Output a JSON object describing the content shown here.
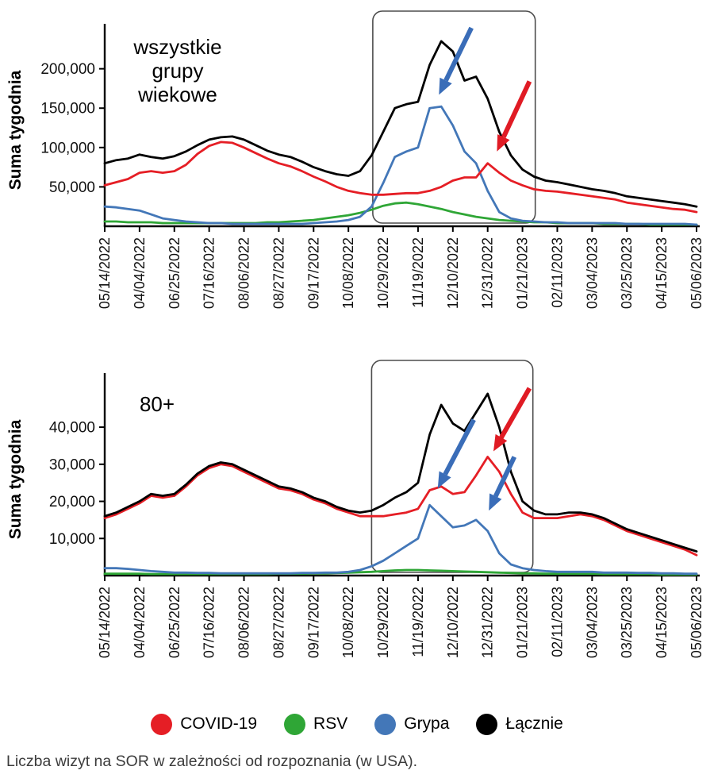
{
  "caption": "Liczba wizyt na SOR w zależności od rozpoznania (w USA).",
  "legend": {
    "items": [
      {
        "name": "covid-19",
        "label": "COVID-19",
        "color": "#e51e25"
      },
      {
        "name": "rsv",
        "label": "RSV",
        "color": "#2fa636"
      },
      {
        "name": "grypa",
        "label": "Grypa",
        "color": "#4377b8"
      },
      {
        "name": "lacznie",
        "label": "Łącznie",
        "color": "#000000"
      }
    ]
  },
  "chart_data": [
    {
      "type": "line",
      "title": "wszystkie grupy wiekowe",
      "title_lines": [
        "wszystkie",
        "grupy",
        "wiekowe"
      ],
      "ylabel": "Suma tygodnia",
      "ylim": [
        0,
        245000
      ],
      "yticks": [
        {
          "value": 50000,
          "label": "50,000"
        },
        {
          "value": 100000,
          "label": "100,000"
        },
        {
          "value": 150000,
          "label": "150,000"
        },
        {
          "value": 200000,
          "label": "200,000"
        }
      ],
      "x_tick_labels": [
        "05/14/2022",
        "04/04/2022",
        "06/25/2022",
        "07/16/2022",
        "08/06/2022",
        "08/27/2022",
        "09/17/2022",
        "10/08/2022",
        "10/29/2022",
        "11/19/2022",
        "12/10/2022",
        "12/31/2022",
        "01/21/2023",
        "02/11/2023",
        "03/04/2023",
        "03/25/2023",
        "04/15/2023",
        "05/06/2023"
      ],
      "x_tick_indices": [
        0,
        3,
        6,
        9,
        12,
        15,
        18,
        21,
        24,
        27,
        30,
        33,
        36,
        39,
        42,
        45,
        48,
        51
      ],
      "series": [
        {
          "id": "rsv",
          "name": "RSV",
          "color": "#2fa636",
          "values": [
            6000,
            6000,
            5000,
            5000,
            5000,
            4000,
            4000,
            4000,
            4000,
            4000,
            4000,
            4000,
            4000,
            4000,
            5000,
            5000,
            6000,
            7000,
            8000,
            10000,
            12000,
            14000,
            17000,
            21000,
            26000,
            29000,
            30000,
            28000,
            25000,
            22000,
            18000,
            15000,
            12000,
            10000,
            8000,
            7000,
            6000,
            5000,
            5000,
            4000,
            4000,
            4000,
            4000,
            3000,
            3000,
            3000,
            3000,
            2000,
            2000,
            2000,
            2000,
            2000
          ]
        },
        {
          "id": "grypa",
          "name": "Grypa",
          "color": "#4377b8",
          "values": [
            25000,
            24000,
            22000,
            20000,
            15000,
            10000,
            8000,
            6000,
            5000,
            4000,
            4000,
            3000,
            3000,
            3000,
            3000,
            3000,
            3000,
            3000,
            4000,
            5000,
            6000,
            8000,
            12000,
            25000,
            55000,
            88000,
            95000,
            100000,
            150000,
            152000,
            128000,
            95000,
            80000,
            45000,
            18000,
            10000,
            7000,
            6000,
            5000,
            5000,
            4000,
            4000,
            4000,
            4000,
            4000,
            3000,
            3000,
            3000,
            3000,
            3000,
            3000,
            2000
          ]
        },
        {
          "id": "covid-19",
          "name": "COVID-19",
          "color": "#e51e25",
          "values": [
            52000,
            56000,
            60000,
            68000,
            70000,
            68000,
            70000,
            78000,
            92000,
            102000,
            107000,
            106000,
            100000,
            93000,
            86000,
            80000,
            76000,
            70000,
            63000,
            57000,
            50000,
            45000,
            42000,
            40000,
            40000,
            41000,
            42000,
            42000,
            45000,
            50000,
            58000,
            62000,
            62000,
            80000,
            68000,
            58000,
            52000,
            47000,
            45000,
            44000,
            42000,
            40000,
            38000,
            36000,
            34000,
            30000,
            28000,
            26000,
            24000,
            22000,
            21000,
            18000
          ]
        },
        {
          "id": "lacznie",
          "name": "Łącznie",
          "color": "#000000",
          "values": [
            80000,
            84000,
            86000,
            91000,
            88000,
            86000,
            89000,
            95000,
            103000,
            110000,
            113000,
            114000,
            110000,
            103000,
            96000,
            91000,
            88000,
            82000,
            75000,
            70000,
            66000,
            64000,
            70000,
            90000,
            120000,
            150000,
            155000,
            158000,
            205000,
            235000,
            222000,
            185000,
            190000,
            162000,
            120000,
            90000,
            72000,
            63000,
            58000,
            56000,
            53000,
            50000,
            47000,
            45000,
            42000,
            38000,
            36000,
            34000,
            32000,
            30000,
            28000,
            25000
          ]
        }
      ],
      "highlight_box": {
        "from_index": 23.1,
        "to_index": 37.1
      },
      "arrows": [
        {
          "color": "#3a6db8",
          "tail": {
            "index": 31.6,
            "value": 252000
          },
          "tip": {
            "index": 28.8,
            "value": 167000
          }
        },
        {
          "color": "#e01b24",
          "tail": {
            "index": 36.6,
            "value": 184000
          },
          "tip": {
            "index": 33.8,
            "value": 95000
          }
        }
      ]
    },
    {
      "type": "line",
      "title": "80+",
      "title_lines": [
        "80+"
      ],
      "ylabel": "Suma tygodnia",
      "ylim": [
        0,
        52000
      ],
      "yticks": [
        {
          "value": 10000,
          "label": "10,000"
        },
        {
          "value": 20000,
          "label": "20,000"
        },
        {
          "value": 30000,
          "label": "30,000"
        },
        {
          "value": 40000,
          "label": "40,000"
        }
      ],
      "x_tick_labels": [
        "05/14/2022",
        "04/04/2022",
        "06/25/2022",
        "07/16/2022",
        "08/06/2022",
        "08/27/2022",
        "09/17/2022",
        "10/08/2022",
        "10/29/2022",
        "11/19/2022",
        "12/10/2022",
        "12/31/2022",
        "01/21/2023",
        "02/11/2023",
        "03/04/2023",
        "03/25/2023",
        "04/15/2023",
        "05/06/2023"
      ],
      "x_tick_indices": [
        0,
        3,
        6,
        9,
        12,
        15,
        18,
        21,
        24,
        27,
        30,
        33,
        36,
        39,
        42,
        45,
        48,
        51
      ],
      "series": [
        {
          "id": "rsv",
          "name": "RSV",
          "color": "#2fa636",
          "values": [
            500,
            500,
            500,
            500,
            400,
            400,
            400,
            400,
            400,
            400,
            400,
            400,
            400,
            400,
            400,
            500,
            500,
            500,
            600,
            600,
            700,
            800,
            900,
            1000,
            1200,
            1400,
            1500,
            1500,
            1400,
            1300,
            1200,
            1100,
            1000,
            900,
            800,
            700,
            600,
            600,
            500,
            500,
            500,
            500,
            500,
            400,
            400,
            400,
            400,
            400,
            300,
            300,
            300,
            300
          ]
        },
        {
          "id": "grypa",
          "name": "Grypa",
          "color": "#4377b8",
          "values": [
            2000,
            2000,
            1800,
            1500,
            1200,
            1000,
            800,
            800,
            700,
            700,
            600,
            600,
            600,
            600,
            600,
            600,
            600,
            700,
            700,
            800,
            800,
            1000,
            1500,
            2500,
            4000,
            6000,
            8000,
            10000,
            19000,
            16000,
            13000,
            13500,
            15000,
            12000,
            6000,
            3000,
            2000,
            1500,
            1200,
            1000,
            1000,
            1000,
            1000,
            800,
            800,
            800,
            700,
            700,
            600,
            600,
            500,
            500
          ]
        },
        {
          "id": "covid-19",
          "name": "COVID-19",
          "color": "#e51e25",
          "values": [
            15500,
            16500,
            18000,
            19500,
            21500,
            21000,
            21500,
            24000,
            27000,
            29000,
            30000,
            29500,
            28000,
            26500,
            25000,
            23500,
            23000,
            22000,
            20500,
            19500,
            18000,
            17000,
            16000,
            16000,
            16000,
            16500,
            17000,
            18000,
            23000,
            24000,
            22000,
            22500,
            27000,
            32000,
            28000,
            22000,
            17000,
            15500,
            15500,
            15500,
            16000,
            16500,
            16000,
            15000,
            13500,
            12000,
            11000,
            10000,
            9000,
            8000,
            7000,
            5500
          ]
        },
        {
          "id": "lacznie",
          "name": "Łącznie",
          "color": "#000000",
          "values": [
            16000,
            17000,
            18500,
            20000,
            22000,
            21500,
            22000,
            24500,
            27500,
            29500,
            30500,
            30000,
            28500,
            27000,
            25500,
            24000,
            23500,
            22500,
            21000,
            20000,
            18500,
            17500,
            17000,
            17500,
            19000,
            21000,
            22500,
            25000,
            38000,
            46000,
            41000,
            39000,
            44000,
            49000,
            40000,
            28000,
            20000,
            17500,
            16500,
            16500,
            17000,
            17000,
            16500,
            15500,
            14000,
            12500,
            11500,
            10500,
            9500,
            8500,
            7500,
            6500
          ]
        }
      ],
      "highlight_box": {
        "from_index": 23.0,
        "to_index": 36.9
      },
      "arrows": [
        {
          "color": "#e01b24",
          "tail": {
            "index": 36.6,
            "value": 50500
          },
          "tip": {
            "index": 33.5,
            "value": 33500
          }
        },
        {
          "color": "#3a6db8",
          "tail": {
            "index": 31.8,
            "value": 42000
          },
          "tip": {
            "index": 28.7,
            "value": 23500
          }
        },
        {
          "color": "#3a6db8",
          "tail": {
            "index": 35.3,
            "value": 32000
          },
          "tip": {
            "index": 33.1,
            "value": 17500
          }
        }
      ]
    }
  ]
}
